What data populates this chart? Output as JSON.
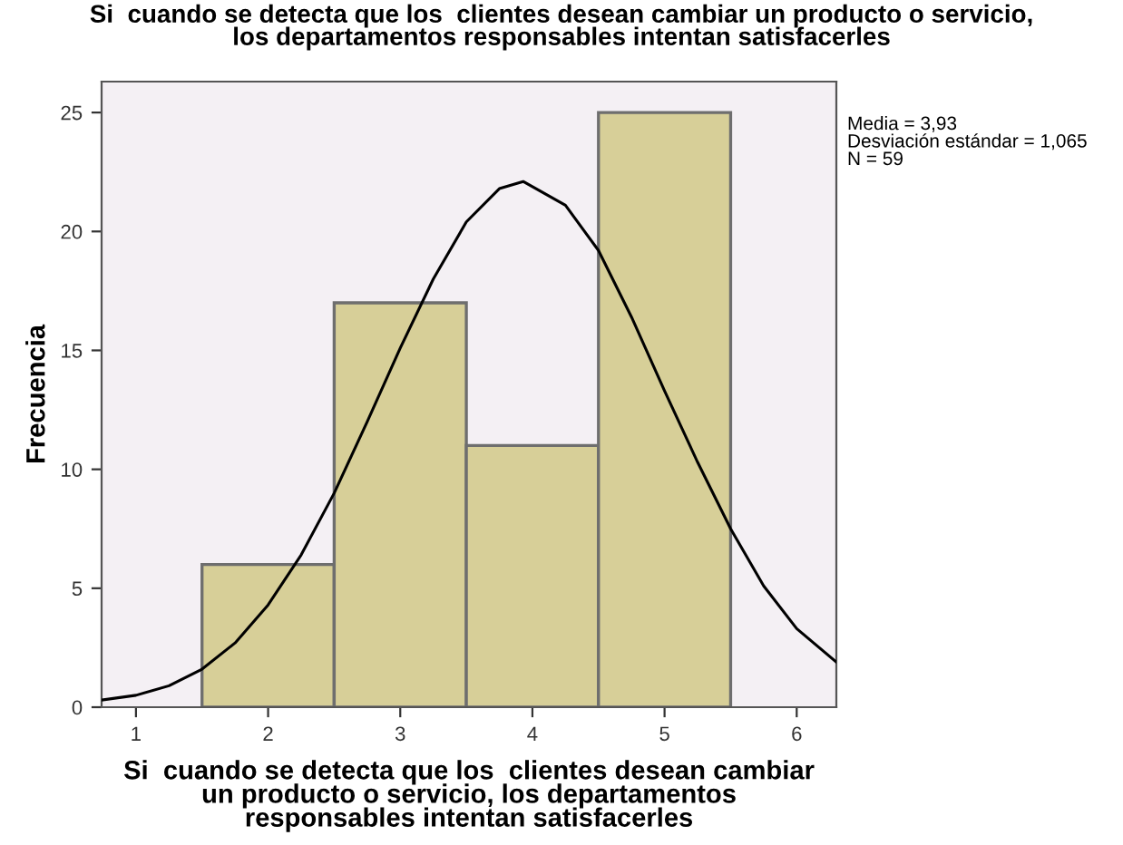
{
  "chart_data": {
    "type": "histogram",
    "title": "Si  cuando se detecta que los  clientes desean cambiar un producto o servicio,\nlos departamentos responsables intentan satisfacerles",
    "xlabel": "Si  cuando se detecta que los  clientes desean cambiar\nun producto o servicio, los departamentos\nresponsables intentan satisfacerles",
    "ylabel": "Frecuencia",
    "annotations": [
      "Media = 3,93",
      "Desviación estándar = 1,065",
      "N = 59"
    ],
    "series": [
      {
        "bins": [
          1.5,
          2.5,
          3.5,
          4.5,
          5.5
        ],
        "values": [
          6,
          17,
          11,
          25
        ],
        "color": "#d7cf98"
      },
      {
        "type": "line",
        "color": "#000000",
        "x": [
          0.74,
          1.0,
          1.25,
          1.5,
          1.75,
          2.0,
          2.25,
          2.5,
          2.75,
          3.0,
          3.25,
          3.5,
          3.75,
          3.93,
          4.25,
          4.5,
          4.75,
          5.0,
          5.25,
          5.5,
          5.75,
          6.0,
          6.3
        ],
        "values": [
          0.3,
          0.5,
          0.9,
          1.6,
          2.7,
          4.3,
          6.4,
          9.0,
          12.0,
          15.1,
          18.0,
          20.4,
          21.8,
          22.1,
          21.1,
          19.2,
          16.4,
          13.3,
          10.3,
          7.5,
          5.1,
          3.3,
          1.9
        ]
      }
    ],
    "xlim": [
      0.74,
      6.3
    ],
    "ylim": [
      0,
      26.3
    ],
    "xticks": [
      1,
      2,
      3,
      4,
      5,
      6
    ],
    "yticks": [
      0,
      5,
      10,
      15,
      20,
      25
    ],
    "grid": false,
    "legend": false
  }
}
